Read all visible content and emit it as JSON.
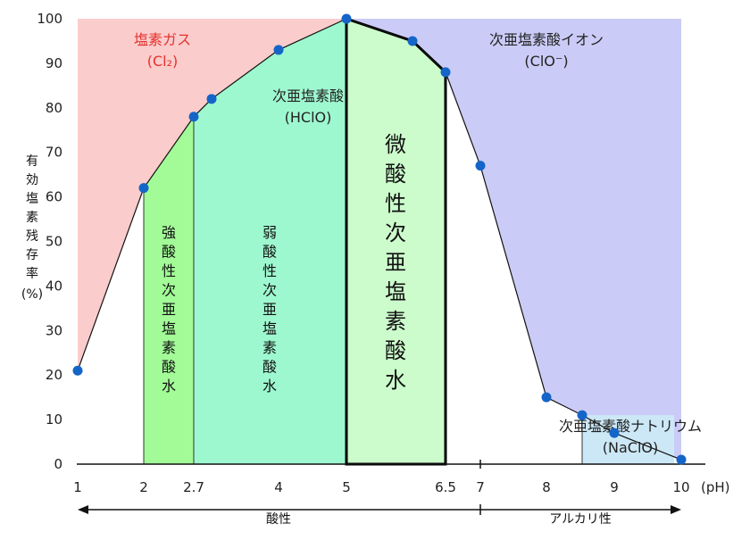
{
  "chart_data": {
    "type": "line",
    "ylabel": "有効塩素残存率(%)",
    "x_unit": "(pH)",
    "x": [
      1,
      2,
      2.7,
      3,
      4,
      5,
      6,
      6.5,
      7,
      8,
      8.5,
      9,
      10
    ],
    "y": [
      21,
      62,
      78,
      82,
      93,
      100,
      95,
      88,
      67,
      15,
      11,
      7,
      1
    ],
    "x_ticks": [
      "1",
      "2",
      "2.7",
      "4",
      "5",
      "6.5",
      "7",
      "8",
      "9",
      "10"
    ],
    "y_ticks": [
      "0",
      "10",
      "20",
      "30",
      "40",
      "50",
      "60",
      "70",
      "80",
      "90",
      "100"
    ],
    "ylim": [
      0,
      100
    ],
    "xlim": [
      1,
      10
    ],
    "regions": {
      "cl2": {
        "label1": "塩素ガス",
        "label2": "(Cl₂)",
        "color": "#fbcccc",
        "text_color": "#e5322d"
      },
      "hclo": {
        "label1": "次亜塩素酸",
        "label2": "(HClO)"
      },
      "clo": {
        "label1": "次亜塩素酸イオン",
        "label2": "(ClO⁻)",
        "color": "#cbcbf7"
      },
      "naclo": {
        "label1": "次亜塩素酸ナトリウム",
        "label2": "(NaClO)",
        "color": "#cce8f6"
      }
    },
    "water_types": [
      {
        "name": "強酸性次亜塩素酸水",
        "from": 2,
        "to": 2.7,
        "color": "#a2fb97"
      },
      {
        "name": "弱酸性次亜塩素酸水",
        "from": 2.7,
        "to": 5,
        "color": "#9ef8cf"
      },
      {
        "name": "微酸性次亜塩素酸水",
        "from": 5,
        "to": 6.5,
        "color": "#ccfccc"
      }
    ],
    "acid_label": "酸性",
    "alkali_label": "アルカリ性",
    "marker_color": "#1565c8"
  }
}
